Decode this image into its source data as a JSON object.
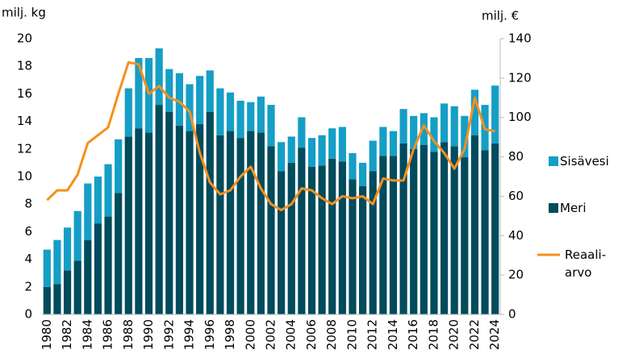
{
  "chart_data": {
    "type": "bar",
    "stacked": true,
    "y_label": "milj. kg",
    "y2_label": "milj. €",
    "categories": [
      "1980",
      null,
      "1982",
      null,
      "1984",
      null,
      "1986",
      null,
      "1988",
      null,
      "1990",
      null,
      "1992",
      null,
      "1994",
      null,
      "1996",
      null,
      "1998",
      null,
      "2000",
      null,
      "2002",
      null,
      "2004",
      null,
      "2006",
      null,
      "2008",
      null,
      "2010",
      null,
      "2012",
      null,
      "2014",
      null,
      "2016",
      null,
      "2018",
      null,
      "2020",
      null,
      "2022",
      null,
      "2024"
    ],
    "series": [
      {
        "name": "Meri",
        "color": "#004b5c",
        "values": [
          2.0,
          2.2,
          3.2,
          3.9,
          5.4,
          6.6,
          7.1,
          8.8,
          12.9,
          13.5,
          13.2,
          15.2,
          14.7,
          13.7,
          13.3,
          13.8,
          14.7,
          13.0,
          13.3,
          12.8,
          13.3,
          13.2,
          12.2,
          10.4,
          11.0,
          12.1,
          10.7,
          10.8,
          11.3,
          11.1,
          9.8,
          9.3,
          10.4,
          11.5,
          11.5,
          12.4,
          12.0,
          12.3,
          11.8,
          12.5,
          12.2,
          11.4,
          13.0,
          11.9,
          12.4
        ]
      },
      {
        "name": "Sisävesi",
        "color": "#159ec6",
        "values": [
          2.7,
          3.2,
          3.1,
          3.6,
          4.1,
          3.4,
          3.8,
          3.9,
          3.5,
          5.1,
          5.4,
          4.1,
          3.1,
          3.8,
          3.4,
          3.5,
          3.0,
          3.4,
          2.8,
          2.7,
          2.1,
          2.6,
          3.0,
          2.1,
          1.9,
          2.2,
          2.1,
          2.2,
          2.2,
          2.5,
          1.9,
          1.7,
          2.2,
          2.1,
          1.8,
          2.5,
          2.4,
          2.3,
          2.5,
          2.8,
          2.9,
          3.0,
          3.3,
          3.3,
          4.2
        ]
      },
      {
        "name": "Reaali-\narvo",
        "color": "#f5901e",
        "type": "line",
        "axis": "y2",
        "values": [
          58,
          63,
          63,
          71,
          87,
          91,
          95,
          112,
          128,
          127,
          112,
          116,
          110,
          108,
          103,
          82,
          67,
          61,
          63,
          70,
          75,
          64,
          56,
          53,
          56,
          64,
          63,
          59,
          56,
          60,
          59,
          60,
          56,
          69,
          68,
          68,
          84,
          96,
          88,
          82,
          74,
          84,
          110,
          94,
          93
        ]
      }
    ],
    "ylim": [
      0,
      20
    ],
    "yticks": [
      0,
      2,
      4,
      6,
      8,
      10,
      12,
      14,
      16,
      18,
      20
    ],
    "y2lim": [
      0,
      140
    ],
    "y2ticks": [
      0,
      20,
      40,
      60,
      80,
      100,
      120,
      140
    ],
    "legend": "right"
  }
}
